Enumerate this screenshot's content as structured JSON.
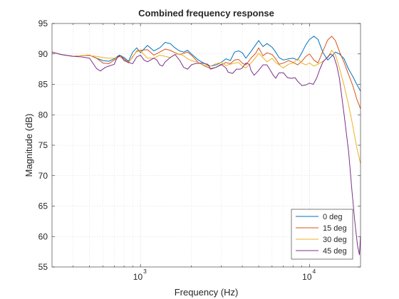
{
  "chart_data": {
    "type": "line",
    "title": "Combined frequency response",
    "xlabel": "Frequency (Hz)",
    "ylabel": "Magnitude (dB)",
    "xscale": "log",
    "xlim": [
      300,
      20000
    ],
    "ylim": [
      55,
      95
    ],
    "yticks": [
      55,
      60,
      65,
      70,
      75,
      80,
      85,
      90,
      95
    ],
    "xticks": [
      {
        "value": 1000,
        "base": "10",
        "exp": "3"
      },
      {
        "value": 10000,
        "base": "10",
        "exp": "4"
      }
    ],
    "grid": true,
    "legend_position": "bottom-right",
    "series": [
      {
        "name": "0 deg",
        "color": "#0072BD",
        "points": [
          [
            300,
            90.3
          ],
          [
            340,
            89.9
          ],
          [
            400,
            89.6
          ],
          [
            450,
            89.7
          ],
          [
            500,
            89.8
          ],
          [
            550,
            89.3
          ],
          [
            600,
            88.9
          ],
          [
            650,
            88.8
          ],
          [
            700,
            89.2
          ],
          [
            750,
            89.8
          ],
          [
            800,
            89.4
          ],
          [
            850,
            88.8
          ],
          [
            900,
            90.3
          ],
          [
            950,
            91.0
          ],
          [
            1000,
            90.2
          ],
          [
            1100,
            91.4
          ],
          [
            1200,
            90.5
          ],
          [
            1300,
            91.0
          ],
          [
            1400,
            91.9
          ],
          [
            1500,
            91.7
          ],
          [
            1600,
            91.0
          ],
          [
            1700,
            90.5
          ],
          [
            1800,
            90.3
          ],
          [
            1900,
            90.6
          ],
          [
            2000,
            90.0
          ],
          [
            2200,
            89.0
          ],
          [
            2400,
            88.4
          ],
          [
            2600,
            88.0
          ],
          [
            2800,
            88.2
          ],
          [
            3000,
            88.6
          ],
          [
            3200,
            89.2
          ],
          [
            3400,
            88.9
          ],
          [
            3600,
            90.3
          ],
          [
            3800,
            90.5
          ],
          [
            4000,
            90.2
          ],
          [
            4200,
            89.3
          ],
          [
            4500,
            90.4
          ],
          [
            4800,
            91.5
          ],
          [
            5000,
            92.2
          ],
          [
            5300,
            91.2
          ],
          [
            5600,
            91.7
          ],
          [
            6000,
            91.1
          ],
          [
            6300,
            90.3
          ],
          [
            6600,
            89.4
          ],
          [
            7000,
            89.0
          ],
          [
            7500,
            89.2
          ],
          [
            8000,
            89.3
          ],
          [
            8500,
            89.0
          ],
          [
            9000,
            90.2
          ],
          [
            9500,
            91.5
          ],
          [
            10000,
            92.4
          ],
          [
            10600,
            92.9
          ],
          [
            11200,
            92.4
          ],
          [
            12000,
            90.2
          ],
          [
            12800,
            89.0
          ],
          [
            13500,
            89.6
          ],
          [
            14200,
            90.3
          ],
          [
            15000,
            90.0
          ],
          [
            16000,
            89.2
          ],
          [
            17000,
            87.5
          ],
          [
            18000,
            86.3
          ],
          [
            19000,
            85.0
          ],
          [
            20000,
            83.9
          ]
        ]
      },
      {
        "name": "15 deg",
        "color": "#D95319",
        "points": [
          [
            300,
            90.3
          ],
          [
            340,
            89.9
          ],
          [
            400,
            89.6
          ],
          [
            450,
            89.7
          ],
          [
            500,
            89.8
          ],
          [
            550,
            89.3
          ],
          [
            600,
            88.5
          ],
          [
            650,
            88.4
          ],
          [
            700,
            89.0
          ],
          [
            750,
            89.6
          ],
          [
            800,
            89.2
          ],
          [
            850,
            88.6
          ],
          [
            900,
            89.5
          ],
          [
            950,
            90.5
          ],
          [
            1000,
            90.6
          ],
          [
            1100,
            90.7
          ],
          [
            1200,
            89.8
          ],
          [
            1300,
            90.3
          ],
          [
            1400,
            90.8
          ],
          [
            1500,
            90.6
          ],
          [
            1600,
            90.2
          ],
          [
            1700,
            89.9
          ],
          [
            1800,
            90.1
          ],
          [
            1900,
            90.3
          ],
          [
            2000,
            89.8
          ],
          [
            2200,
            88.6
          ],
          [
            2400,
            88.0
          ],
          [
            2600,
            87.6
          ],
          [
            2800,
            87.8
          ],
          [
            3000,
            88.2
          ],
          [
            3200,
            88.6
          ],
          [
            3400,
            88.4
          ],
          [
            3600,
            89.0
          ],
          [
            3800,
            89.1
          ],
          [
            4000,
            88.5
          ],
          [
            4200,
            88.2
          ],
          [
            4500,
            89.3
          ],
          [
            4800,
            90.1
          ],
          [
            5000,
            91.0
          ],
          [
            5300,
            89.7
          ],
          [
            5600,
            90.2
          ],
          [
            6000,
            89.9
          ],
          [
            6300,
            89.2
          ],
          [
            6600,
            88.3
          ],
          [
            7000,
            88.5
          ],
          [
            7500,
            88.9
          ],
          [
            8000,
            88.6
          ],
          [
            8500,
            88.2
          ],
          [
            9000,
            88.8
          ],
          [
            9500,
            89.6
          ],
          [
            10000,
            90.0
          ],
          [
            10600,
            89.0
          ],
          [
            11200,
            88.5
          ],
          [
            12000,
            90.5
          ],
          [
            12800,
            92.3
          ],
          [
            13500,
            92.9
          ],
          [
            14200,
            92.2
          ],
          [
            15000,
            90.4
          ],
          [
            16000,
            88.6
          ],
          [
            17000,
            86.6
          ],
          [
            18000,
            84.8
          ],
          [
            19000,
            82.6
          ],
          [
            20000,
            81.0
          ]
        ]
      },
      {
        "name": "30 deg",
        "color": "#EDB120",
        "points": [
          [
            300,
            90.3
          ],
          [
            340,
            89.9
          ],
          [
            400,
            89.6
          ],
          [
            450,
            89.7
          ],
          [
            500,
            89.7
          ],
          [
            550,
            89.6
          ],
          [
            600,
            89.4
          ],
          [
            650,
            89.3
          ],
          [
            700,
            89.3
          ],
          [
            750,
            89.6
          ],
          [
            800,
            89.0
          ],
          [
            850,
            88.5
          ],
          [
            900,
            89.6
          ],
          [
            950,
            90.4
          ],
          [
            1000,
            90.5
          ],
          [
            1100,
            89.3
          ],
          [
            1200,
            89.3
          ],
          [
            1300,
            89.8
          ],
          [
            1400,
            89.6
          ],
          [
            1500,
            89.4
          ],
          [
            1600,
            89.9
          ],
          [
            1700,
            90.0
          ],
          [
            1800,
            89.7
          ],
          [
            1900,
            89.2
          ],
          [
            2000,
            88.9
          ],
          [
            2200,
            88.6
          ],
          [
            2400,
            88.1
          ],
          [
            2600,
            88.0
          ],
          [
            2800,
            88.4
          ],
          [
            3000,
            88.6
          ],
          [
            3200,
            88.1
          ],
          [
            3400,
            88.3
          ],
          [
            3600,
            88.5
          ],
          [
            3800,
            88.6
          ],
          [
            4000,
            88.0
          ],
          [
            4200,
            87.7
          ],
          [
            4500,
            88.5
          ],
          [
            4800,
            89.4
          ],
          [
            5000,
            90.1
          ],
          [
            5300,
            89.4
          ],
          [
            5600,
            88.7
          ],
          [
            6000,
            89.3
          ],
          [
            6300,
            88.6
          ],
          [
            6600,
            88.2
          ],
          [
            7000,
            87.7
          ],
          [
            7500,
            88.3
          ],
          [
            8000,
            88.5
          ],
          [
            8500,
            89.2
          ],
          [
            9000,
            88.5
          ],
          [
            9500,
            88.2
          ],
          [
            10000,
            88.5
          ],
          [
            10600,
            88.0
          ],
          [
            11200,
            88.3
          ],
          [
            12000,
            88.8
          ],
          [
            12800,
            89.4
          ],
          [
            13500,
            90.6
          ],
          [
            14200,
            89.9
          ],
          [
            15000,
            87.7
          ],
          [
            16000,
            84.8
          ],
          [
            17000,
            81.6
          ],
          [
            18000,
            78.2
          ],
          [
            19000,
            74.6
          ],
          [
            20000,
            72.0
          ]
        ]
      },
      {
        "name": "45 deg",
        "color": "#7E2F8E",
        "points": [
          [
            300,
            90.3
          ],
          [
            340,
            89.9
          ],
          [
            400,
            89.6
          ],
          [
            450,
            89.5
          ],
          [
            500,
            89.3
          ],
          [
            520,
            88.6
          ],
          [
            550,
            87.6
          ],
          [
            580,
            87.2
          ],
          [
            620,
            87.8
          ],
          [
            650,
            88.0
          ],
          [
            700,
            88.3
          ],
          [
            730,
            89.5
          ],
          [
            770,
            89.7
          ],
          [
            800,
            88.9
          ],
          [
            850,
            88.6
          ],
          [
            900,
            88.4
          ],
          [
            950,
            89.5
          ],
          [
            1000,
            89.8
          ],
          [
            1050,
            89.0
          ],
          [
            1100,
            88.7
          ],
          [
            1200,
            89.3
          ],
          [
            1250,
            89.0
          ],
          [
            1300,
            88.2
          ],
          [
            1350,
            88.0
          ],
          [
            1400,
            88.7
          ],
          [
            1500,
            89.4
          ],
          [
            1600,
            89.9
          ],
          [
            1700,
            89.0
          ],
          [
            1800,
            87.8
          ],
          [
            1900,
            87.5
          ],
          [
            2000,
            88.2
          ],
          [
            2100,
            88.4
          ],
          [
            2300,
            88.5
          ],
          [
            2500,
            88.3
          ],
          [
            2600,
            87.5
          ],
          [
            2800,
            87.8
          ],
          [
            3000,
            88.3
          ],
          [
            3200,
            87.7
          ],
          [
            3300,
            87.0
          ],
          [
            3500,
            86.8
          ],
          [
            3700,
            87.5
          ],
          [
            3900,
            87.5
          ],
          [
            4000,
            87.7
          ],
          [
            4200,
            88.5
          ],
          [
            4400,
            88.3
          ],
          [
            4500,
            87.3
          ],
          [
            4700,
            86.5
          ],
          [
            5000,
            87.3
          ],
          [
            5300,
            88.2
          ],
          [
            5600,
            88.2
          ],
          [
            5800,
            87.5
          ],
          [
            6100,
            86.5
          ],
          [
            6300,
            86.0
          ],
          [
            6600,
            86.9
          ],
          [
            7000,
            86.9
          ],
          [
            7400,
            86.1
          ],
          [
            7800,
            86.0
          ],
          [
            8200,
            86.1
          ],
          [
            8500,
            85.5
          ],
          [
            9000,
            84.8
          ],
          [
            9500,
            84.9
          ],
          [
            10000,
            85.2
          ],
          [
            10500,
            85.0
          ],
          [
            11000,
            86.0
          ],
          [
            11500,
            87.5
          ],
          [
            12000,
            88.7
          ],
          [
            12800,
            89.5
          ],
          [
            13300,
            90.0
          ],
          [
            13900,
            89.6
          ],
          [
            14500,
            88.0
          ],
          [
            15000,
            86.0
          ],
          [
            16000,
            80.0
          ],
          [
            17000,
            74.0
          ],
          [
            17800,
            67.5
          ],
          [
            18500,
            62.5
          ],
          [
            19200,
            58.5
          ],
          [
            19700,
            57.0
          ],
          [
            20000,
            60.0
          ]
        ]
      }
    ]
  }
}
